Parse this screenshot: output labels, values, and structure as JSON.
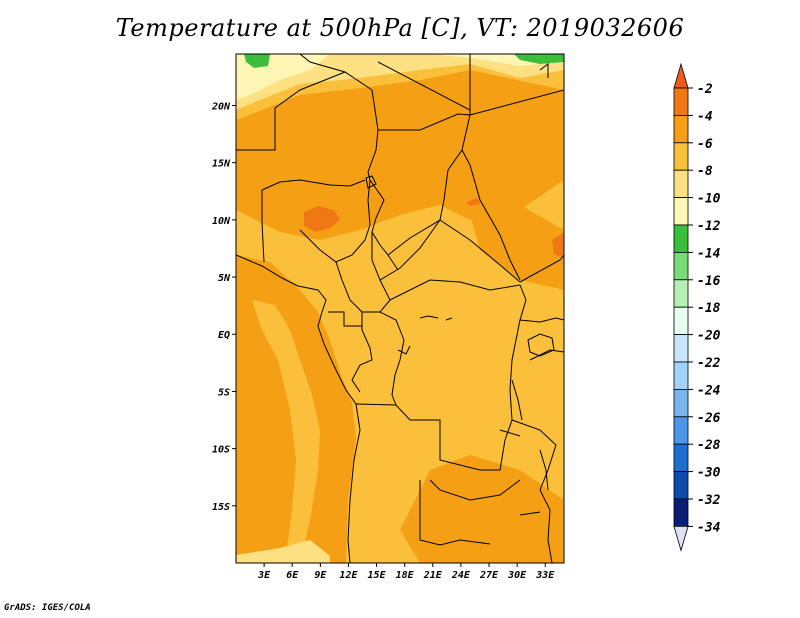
{
  "title": "Temperature at 500hPa [C], VT: 2019032606",
  "credit": "GrADS: IGES/COLA",
  "map": {
    "lat_range": [
      -20,
      24.5
    ],
    "lon_range": [
      0,
      35
    ],
    "lat_ticks": [
      {
        "value": 20,
        "label": "20N"
      },
      {
        "value": 15,
        "label": "15N"
      },
      {
        "value": 10,
        "label": "10N"
      },
      {
        "value": 5,
        "label": "5N"
      },
      {
        "value": 0,
        "label": "EQ"
      },
      {
        "value": -5,
        "label": "5S"
      },
      {
        "value": -10,
        "label": "10S"
      },
      {
        "value": -15,
        "label": "15S"
      }
    ],
    "lon_ticks": [
      {
        "value": 3,
        "label": "3E"
      },
      {
        "value": 6,
        "label": "6E"
      },
      {
        "value": 9,
        "label": "9E"
      },
      {
        "value": 12,
        "label": "12E"
      },
      {
        "value": 15,
        "label": "15E"
      },
      {
        "value": 18,
        "label": "18E"
      },
      {
        "value": 21,
        "label": "21E"
      },
      {
        "value": 24,
        "label": "24E"
      },
      {
        "value": 27,
        "label": "27E"
      },
      {
        "value": 30,
        "label": "30E"
      },
      {
        "value": 33,
        "label": "33E"
      }
    ],
    "dominant_band": "-8 to -6",
    "colors": {
      "warmest": "#f05a1e",
      "band_-4_-2": "#f07814",
      "band_-6_-4": "#f5a014",
      "band_-8_-6": "#fac03c",
      "band_-10_-8": "#fde082",
      "band_-12_-10": "#fff5b4",
      "band_-14_-12": "#3cbe3c",
      "border": "#000000"
    }
  },
  "colorbar": {
    "labels": [
      "-2",
      "-4",
      "-6",
      "-8",
      "-10",
      "-12",
      "-14",
      "-16",
      "-18",
      "-20",
      "-22",
      "-24",
      "-26",
      "-28",
      "-30",
      "-32",
      "-34"
    ],
    "colors": [
      "#f05a1e",
      "#f07814",
      "#f5a014",
      "#fac03c",
      "#fde082",
      "#fff5b4",
      "#3cbe3c",
      "#78dc78",
      "#b4f0b4",
      "#e6fff0",
      "#c8e6fa",
      "#a0d2fa",
      "#78b4f0",
      "#4b96e6",
      "#1e6ed2",
      "#0f4baa",
      "#0a1e78",
      "#e1e1fa"
    ]
  }
}
